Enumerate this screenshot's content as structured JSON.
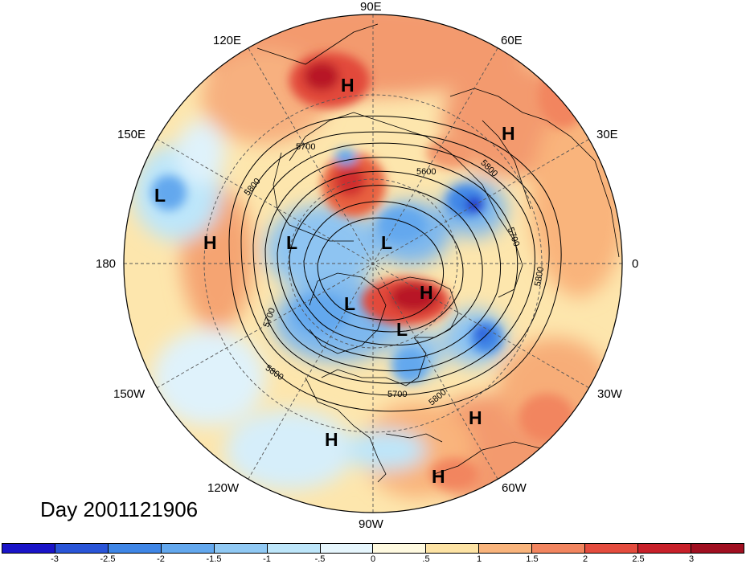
{
  "title": "Day 2001121906",
  "longitude_labels": {
    "lon_90e": "90E",
    "lon_120e": "120E",
    "lon_60e": "60E",
    "lon_150e": "150E",
    "lon_30e": "30E",
    "lon_180": "180",
    "lon_0": "0",
    "lon_150w": "150W",
    "lon_30w": "30W",
    "lon_120w": "120W",
    "lon_60w": "60W",
    "lon_90w": "90W"
  },
  "pressure_centers": [
    {
      "label": "H",
      "region": "siberia"
    },
    {
      "label": "H",
      "region": "europe-east"
    },
    {
      "label": "L",
      "region": "north-pacific"
    },
    {
      "label": "H",
      "region": "bering"
    },
    {
      "label": "L",
      "region": "arctic-west"
    },
    {
      "label": "L",
      "region": "arctic-central"
    },
    {
      "label": "L",
      "region": "canada"
    },
    {
      "label": "H",
      "region": "greenland"
    },
    {
      "label": "L",
      "region": "labrador"
    },
    {
      "label": "H",
      "region": "atlantic"
    },
    {
      "label": "H",
      "region": "caribbean"
    },
    {
      "label": "H",
      "region": "south-america"
    }
  ],
  "contour_labels": [
    "5700",
    "5600",
    "5800",
    "5700",
    "5800",
    "5700",
    "5800",
    "5700",
    "5800"
  ],
  "colorbar": {
    "ticks": [
      "-3",
      "-2.5",
      "-2",
      "-1.5",
      "-1",
      "-.5",
      "0",
      ".5",
      "1",
      "1.5",
      "2",
      "2.5",
      "3"
    ],
    "colors": [
      "#1a14c8",
      "#2a55d8",
      "#3f86e6",
      "#63a8ee",
      "#90c9f4",
      "#bde6fa",
      "#e6f6fd",
      "#fffae0",
      "#fde3a4",
      "#f9b47c",
      "#f2855f",
      "#e44c3e",
      "#c8202a",
      "#a00f20"
    ]
  }
}
